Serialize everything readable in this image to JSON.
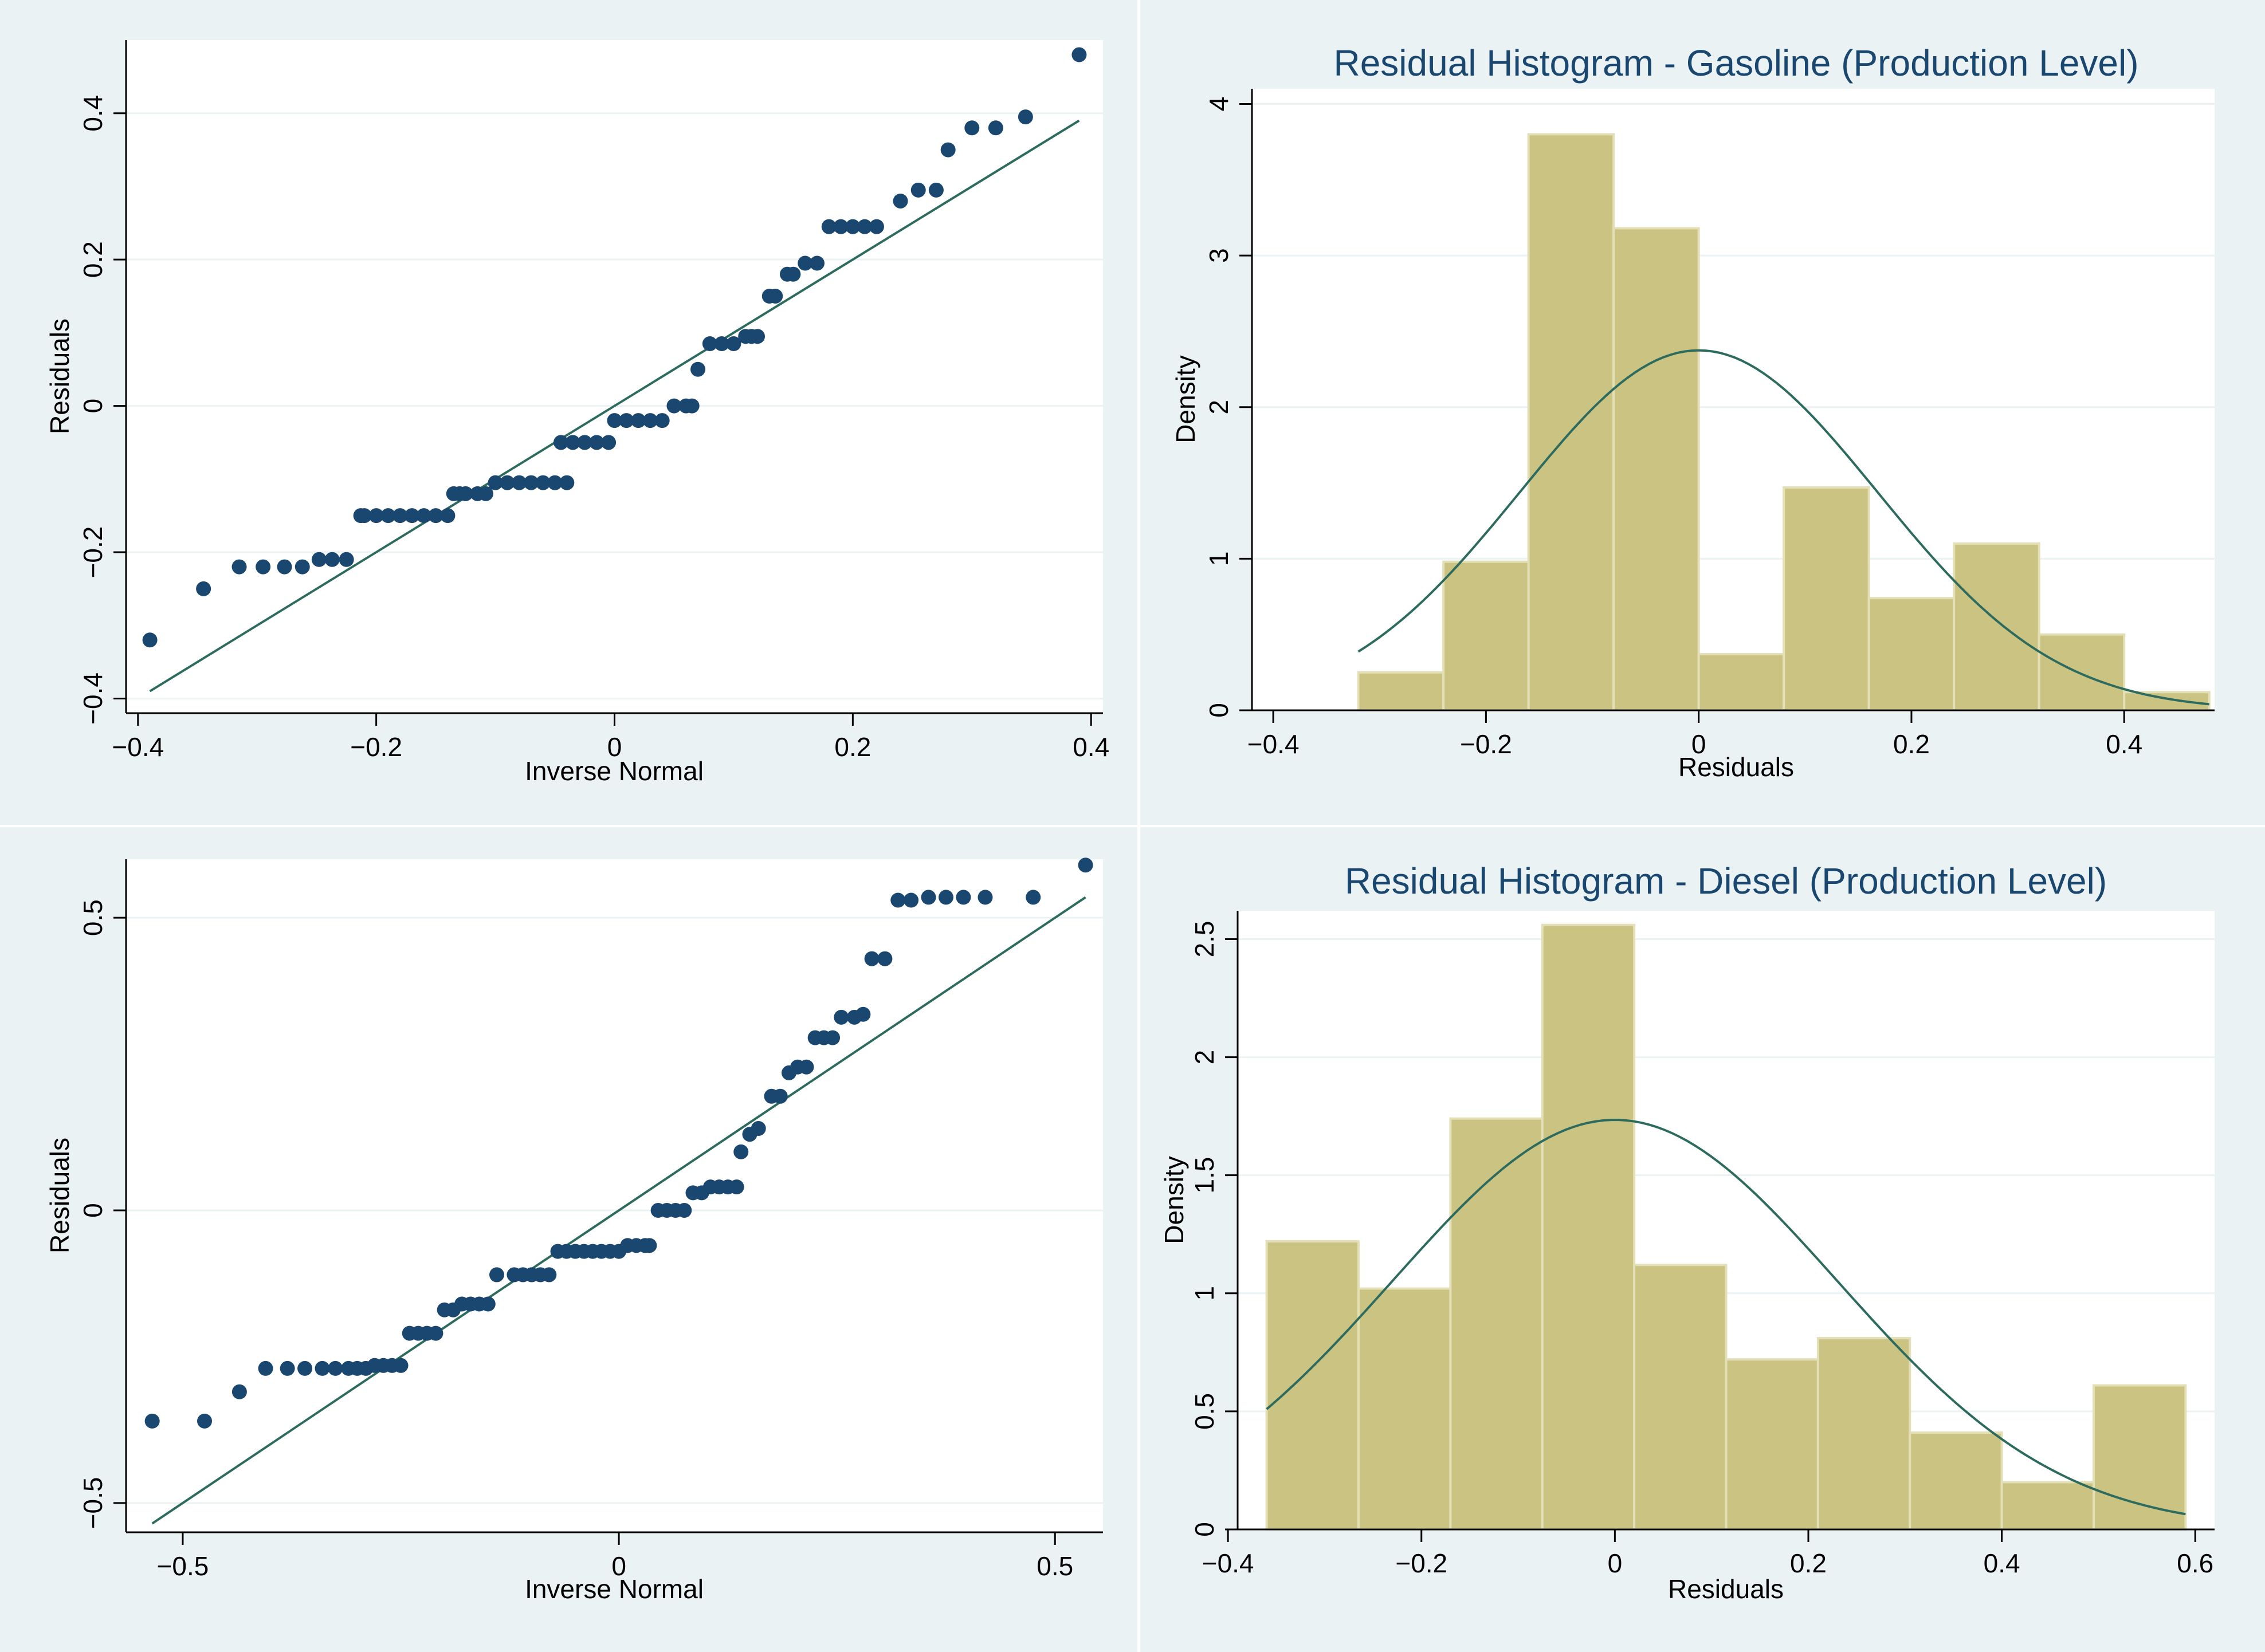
{
  "figure": {
    "background_color": "#eaf2f3",
    "panel_color": "#ffffff"
  },
  "chart_data": [
    {
      "type": "scatter",
      "subtype": "qnorm",
      "title": "",
      "xlabel": "Inverse Normal",
      "ylabel": "Residuals",
      "xlim": [
        -0.41,
        0.41
      ],
      "ylim": [
        -0.42,
        0.5
      ],
      "xticks": [
        -0.4,
        -0.2,
        0,
        0.2,
        0.4
      ],
      "xtick_labels": [
        "−0.4",
        "−0.2",
        "0",
        "0.2",
        "0.4"
      ],
      "yticks": [
        -0.4,
        -0.2,
        0,
        0.2,
        0.4
      ],
      "ytick_labels": [
        "−0.4",
        "−0.2",
        "0",
        "0.2",
        "0.4"
      ],
      "marker_color": "#1a476f",
      "line_color": "#2d6b5e",
      "reference_line": {
        "x": [
          -0.39,
          0.39
        ],
        "y": [
          -0.39,
          0.39
        ]
      },
      "x": [
        -0.39,
        -0.345,
        -0.315,
        -0.295,
        -0.277,
        -0.262,
        -0.248,
        -0.237,
        -0.225,
        -0.213,
        -0.21,
        -0.2,
        -0.19,
        -0.18,
        -0.17,
        -0.16,
        -0.15,
        -0.14,
        -0.13,
        -0.135,
        -0.125,
        -0.115,
        -0.108,
        -0.1,
        -0.09,
        -0.08,
        -0.07,
        -0.06,
        -0.05,
        -0.04,
        -0.045,
        -0.035,
        -0.025,
        -0.015,
        -0.005,
        0.0,
        0.01,
        0.02,
        0.03,
        0.04,
        0.05,
        0.06,
        0.065,
        0.07,
        0.08,
        0.09,
        0.1,
        0.11,
        0.115,
        0.12,
        0.13,
        0.135,
        0.145,
        0.15,
        0.16,
        0.17,
        0.18,
        0.19,
        0.2,
        0.21,
        0.22,
        0.24,
        0.255,
        0.27,
        0.28,
        0.3,
        0.32,
        0.345,
        0.39
      ],
      "y": [
        -0.32,
        -0.25,
        -0.22,
        -0.22,
        -0.22,
        -0.22,
        -0.21,
        -0.21,
        -0.21,
        -0.15,
        -0.15,
        -0.15,
        -0.15,
        -0.15,
        -0.15,
        -0.15,
        -0.15,
        -0.15,
        -0.12,
        -0.12,
        -0.12,
        -0.12,
        -0.12,
        -0.105,
        -0.105,
        -0.105,
        -0.105,
        -0.105,
        -0.105,
        -0.105,
        -0.05,
        -0.05,
        -0.05,
        -0.05,
        -0.05,
        -0.02,
        -0.02,
        -0.02,
        -0.02,
        -0.02,
        0.0,
        0.0,
        0.0,
        0.05,
        0.085,
        0.085,
        0.085,
        0.095,
        0.095,
        0.095,
        0.15,
        0.15,
        0.18,
        0.18,
        0.195,
        0.195,
        0.245,
        0.245,
        0.245,
        0.245,
        0.245,
        0.28,
        0.295,
        0.295,
        0.35,
        0.38,
        0.38,
        0.395,
        0.48
      ]
    },
    {
      "type": "bar",
      "subtype": "histogram",
      "title": "Residual Histogram - Gasoline (Production Level)",
      "xlabel": "Residuals",
      "ylabel": "Density",
      "xlim": [
        -0.42,
        0.485
      ],
      "ylim": [
        0,
        4.1
      ],
      "xticks": [
        -0.4,
        -0.2,
        0,
        0.2,
        0.4
      ],
      "xtick_labels": [
        "−0.4",
        "−0.2",
        "0",
        "0.2",
        "0.4"
      ],
      "yticks": [
        0,
        1,
        2,
        3,
        4
      ],
      "ytick_labels": [
        "0",
        "1",
        "2",
        "3",
        "4"
      ],
      "bar_color": "#cbc382",
      "curve_color": "#2d6b5e",
      "bin_edges": [
        -0.32,
        -0.24,
        -0.16,
        -0.08,
        0.0,
        0.08,
        0.16,
        0.24,
        0.32,
        0.4,
        0.48
      ],
      "values": [
        0.25,
        0.98,
        3.8,
        3.18,
        0.37,
        1.47,
        0.74,
        1.1,
        0.5,
        0.12
      ],
      "normal_curve": {
        "mean": 0.0,
        "sd": 0.168,
        "x_range": [
          -0.32,
          0.48
        ]
      }
    },
    {
      "type": "scatter",
      "subtype": "qnorm",
      "title": "",
      "xlabel": "Inverse Normal",
      "ylabel": "Residuals",
      "xlim": [
        -0.565,
        0.555
      ],
      "ylim": [
        -0.55,
        0.6
      ],
      "xticks": [
        -0.5,
        0,
        0.5
      ],
      "xtick_labels": [
        "−0.5",
        "0",
        "0.5"
      ],
      "yticks": [
        -0.5,
        0,
        0.5
      ],
      "ytick_labels": [
        "−0.5",
        "0",
        "0.5"
      ],
      "marker_color": "#1a476f",
      "line_color": "#2d6b5e",
      "reference_line": {
        "x": [
          -0.535,
          0.535
        ],
        "y": [
          -0.535,
          0.535
        ]
      },
      "x": [
        -0.535,
        -0.475,
        -0.435,
        -0.405,
        -0.38,
        -0.36,
        -0.34,
        -0.325,
        -0.31,
        -0.3,
        -0.29,
        -0.28,
        -0.27,
        -0.26,
        -0.25,
        -0.24,
        -0.23,
        -0.22,
        -0.21,
        -0.2,
        -0.19,
        -0.18,
        -0.17,
        -0.16,
        -0.15,
        -0.14,
        -0.12,
        -0.11,
        -0.1,
        -0.09,
        -0.08,
        -0.07,
        -0.06,
        -0.05,
        -0.04,
        -0.03,
        -0.02,
        -0.01,
        0.0,
        0.01,
        0.02,
        0.03,
        0.035,
        0.045,
        0.055,
        0.065,
        0.075,
        0.085,
        0.095,
        0.105,
        0.115,
        0.125,
        0.135,
        0.14,
        0.15,
        0.16,
        0.175,
        0.185,
        0.195,
        0.205,
        0.215,
        0.225,
        0.235,
        0.245,
        0.255,
        0.27,
        0.28,
        0.29,
        0.305,
        0.32,
        0.335,
        0.355,
        0.375,
        0.395,
        0.42,
        0.475,
        0.535
      ],
      "y": [
        -0.36,
        -0.36,
        -0.31,
        -0.27,
        -0.27,
        -0.27,
        -0.27,
        -0.27,
        -0.27,
        -0.27,
        -0.27,
        -0.265,
        -0.265,
        -0.265,
        -0.265,
        -0.21,
        -0.21,
        -0.21,
        -0.21,
        -0.17,
        -0.17,
        -0.16,
        -0.16,
        -0.16,
        -0.16,
        -0.11,
        -0.11,
        -0.11,
        -0.11,
        -0.11,
        -0.11,
        -0.07,
        -0.07,
        -0.07,
        -0.07,
        -0.07,
        -0.07,
        -0.07,
        -0.07,
        -0.06,
        -0.06,
        -0.06,
        -0.06,
        0.0,
        0.0,
        0.0,
        0.0,
        0.03,
        0.03,
        0.04,
        0.04,
        0.04,
        0.04,
        0.1,
        0.13,
        0.14,
        0.195,
        0.195,
        0.235,
        0.245,
        0.245,
        0.295,
        0.295,
        0.295,
        0.33,
        0.33,
        0.335,
        0.43,
        0.43,
        0.53,
        0.53,
        0.535,
        0.535,
        0.535,
        0.535,
        0.535,
        0.59
      ]
    },
    {
      "type": "bar",
      "subtype": "histogram",
      "title": "Residual Histogram - Diesel (Production Level)",
      "xlabel": "Residuals",
      "ylabel": "Density",
      "xlim": [
        -0.39,
        0.62
      ],
      "ylim": [
        0,
        2.62
      ],
      "xticks": [
        -0.4,
        -0.2,
        0,
        0.2,
        0.4,
        0.6
      ],
      "xtick_labels": [
        "−0.4",
        "−0.2",
        "0",
        "0.2",
        "0.4",
        "0.6"
      ],
      "yticks": [
        0,
        0.5,
        1,
        1.5,
        2,
        2.5
      ],
      "ytick_labels": [
        "0",
        "0.5",
        "1",
        "1.5",
        "2",
        "2.5"
      ],
      "bar_color": "#cbc382",
      "curve_color": "#2d6b5e",
      "bin_edges": [
        -0.36,
        -0.265,
        -0.17,
        -0.075,
        0.02,
        0.115,
        0.21,
        0.305,
        0.4,
        0.495,
        0.59
      ],
      "values": [
        1.22,
        1.02,
        1.74,
        2.56,
        1.12,
        0.72,
        0.81,
        0.41,
        0.2,
        0.61
      ],
      "normal_curve": {
        "mean": 0.0,
        "sd": 0.23,
        "x_range": [
          -0.36,
          0.59
        ]
      }
    }
  ]
}
